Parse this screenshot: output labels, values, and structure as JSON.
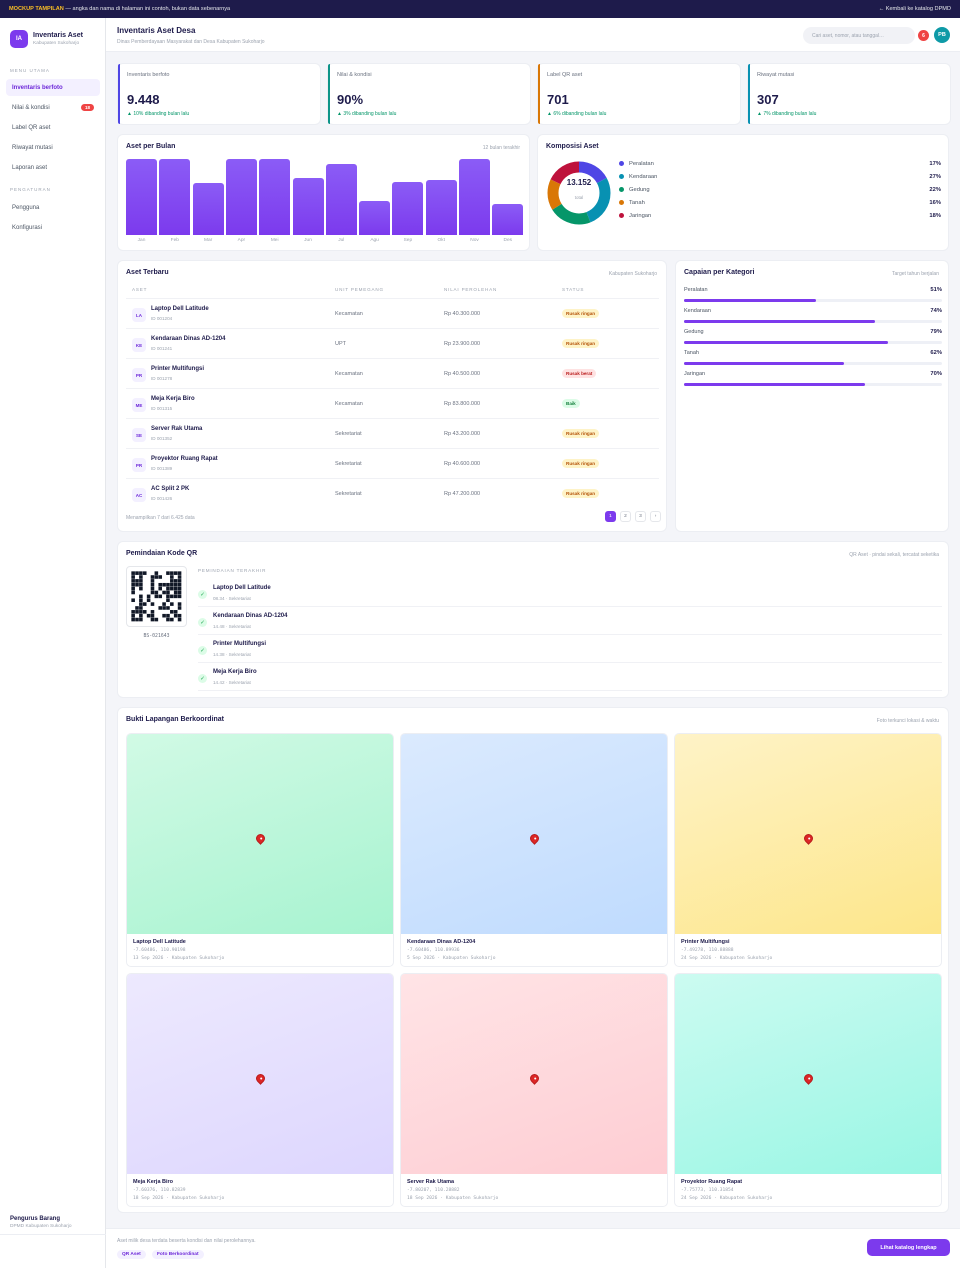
{
  "banner": {
    "tag": "MOCKUP TAMPILAN",
    "text": " — angka dan nama di halaman ini contoh, bukan data sebenarnya",
    "back_link": "← Kembali ke katalog DPMD"
  },
  "brand": {
    "initials": "IA",
    "title": "Inventaris Aset",
    "subtitle": "Kabupaten Sukoharjo"
  },
  "nav": {
    "section_main": "MENU UTAMA",
    "items": [
      {
        "label": "Inventaris berfoto",
        "active": true
      },
      {
        "label": "Nilai & kondisi",
        "badge": "18"
      },
      {
        "label": "Label QR aset"
      },
      {
        "label": "Riwayat mutasi"
      },
      {
        "label": "Laporan aset"
      }
    ],
    "section_settings": "PENGATURAN",
    "settings": [
      {
        "label": "Pengguna"
      },
      {
        "label": "Konfigurasi"
      }
    ]
  },
  "sidebar_footer": {
    "title": "Pengurus Barang",
    "subtitle": "DPMD Kabupaten Sukoharjo"
  },
  "header": {
    "title": "Inventaris Aset Desa",
    "subtitle": "Dinas Pemberdayaan Masyarakat dan Desa Kabupaten Sukoharjo",
    "search_placeholder": "Cari aset, nomor, atau tanggal…",
    "notif_count": "6",
    "avatar": "PB"
  },
  "stats": [
    {
      "label": "Inventaris berfoto",
      "value": "9.448",
      "change": "▲ 10% dibanding bulan lalu",
      "accent": "#4f46e5"
    },
    {
      "label": "Nilai & kondisi",
      "value": "90%",
      "change": "▲ 3% dibanding bulan lalu",
      "accent": "#0d9488"
    },
    {
      "label": "Label QR aset",
      "value": "701",
      "change": "▲ 6% dibanding bulan lalu",
      "accent": "#d97706"
    },
    {
      "label": "Riwayat mutasi",
      "value": "307",
      "change": "▲ 7% dibanding bulan lalu",
      "accent": "#0891b2"
    }
  ],
  "chart_data": [
    {
      "type": "bar",
      "title": "Aset per Bulan",
      "subtitle": "12 bulan terakhir",
      "categories": [
        "Jan",
        "Feb",
        "Mar",
        "Apr",
        "Mei",
        "Jun",
        "Jul",
        "Agu",
        "Sep",
        "Okt",
        "Nov",
        "Des"
      ],
      "values": [
        100,
        100,
        68,
        100,
        100,
        75,
        93,
        45,
        70,
        72,
        100,
        41
      ],
      "ylim": [
        0,
        100
      ],
      "grid": false
    },
    {
      "type": "pie",
      "title": "Komposisi Aset",
      "total": "13.152",
      "total_label": "total",
      "slices": [
        {
          "name": "Peralatan",
          "value": 17,
          "label": "17%",
          "color": "#4f46e5"
        },
        {
          "name": "Kendaraan",
          "value": 27,
          "label": "27%",
          "color": "#0891b2"
        },
        {
          "name": "Gedung",
          "value": 22,
          "label": "22%",
          "color": "#059669"
        },
        {
          "name": "Tanah",
          "value": 16,
          "label": "16%",
          "color": "#d97706"
        },
        {
          "name": "Jaringan",
          "value": 18,
          "label": "18%",
          "color": "#be123c"
        }
      ]
    }
  ],
  "table": {
    "title": "Aset Terbaru",
    "right": "Kabupaten Sukoharjo",
    "headers": [
      "ASET",
      "UNIT PEMEGANG",
      "NILAI PEROLEHAN",
      "STATUS"
    ],
    "rows": [
      {
        "ini": "LA",
        "name": "Laptop Dell Latitude",
        "id": "ID 001204",
        "unit": "Kecamatan",
        "value": "Rp 40.300.000",
        "status": "Rusak ringan",
        "kind": "warn"
      },
      {
        "ini": "KE",
        "name": "Kendaraan Dinas AD-1204",
        "id": "ID 001241",
        "unit": "UPT",
        "value": "Rp 23.900.000",
        "status": "Rusak ringan",
        "kind": "warn"
      },
      {
        "ini": "PR",
        "name": "Printer Multifungsi",
        "id": "ID 001278",
        "unit": "Kecamatan",
        "value": "Rp 40.500.000",
        "status": "Rusak berat",
        "kind": "bad"
      },
      {
        "ini": "ME",
        "name": "Meja Kerja Biro",
        "id": "ID 001315",
        "unit": "Kecamatan",
        "value": "Rp 83.800.000",
        "status": "Baik",
        "kind": "good"
      },
      {
        "ini": "SE",
        "name": "Server Rak Utama",
        "id": "ID 001352",
        "unit": "Sekretariat",
        "value": "Rp 43.200.000",
        "status": "Rusak ringan",
        "kind": "warn"
      },
      {
        "ini": "PR",
        "name": "Proyektor Ruang Rapat",
        "id": "ID 001389",
        "unit": "Sekretariat",
        "value": "Rp 40.600.000",
        "status": "Rusak ringan",
        "kind": "warn"
      },
      {
        "ini": "AC",
        "name": "AC Split 2 PK",
        "id": "ID 001426",
        "unit": "Sekretariat",
        "value": "Rp 47.200.000",
        "status": "Rusak ringan",
        "kind": "warn"
      }
    ],
    "footer": "Menampilkan 7 dari 6.425 data",
    "pages": [
      "1",
      "2",
      "3",
      "›"
    ]
  },
  "progress": {
    "title": "Capaian per Kategori",
    "right": "Target tahun berjalan",
    "items": [
      {
        "label": "Peralatan",
        "pct": 51,
        "text": "51%"
      },
      {
        "label": "Kendaraan",
        "pct": 74,
        "text": "74%"
      },
      {
        "label": "Gedung",
        "pct": 79,
        "text": "79%"
      },
      {
        "label": "Tanah",
        "pct": 62,
        "text": "62%"
      },
      {
        "label": "Jaringan",
        "pct": 70,
        "text": "70%"
      }
    ]
  },
  "qr": {
    "title": "Pemindaian Kode QR",
    "right": "QR Aset · pindai sekali, tercatat seketika",
    "code": "BS-021643",
    "recent_title": "PEMINDAIAN TERAKHIR",
    "scans": [
      {
        "name": "Laptop Dell Latitude",
        "meta": "08.34 · Sekretariat"
      },
      {
        "name": "Kendaraan Dinas AD-1204",
        "meta": "14.48 · Sekretariat"
      },
      {
        "name": "Printer Multifungsi",
        "meta": "14.38 · Sekretariat"
      },
      {
        "name": "Meja Kerja Biro",
        "meta": "14.42 · Sekretariat"
      }
    ]
  },
  "photos": {
    "title": "Bukti Lapangan Berkoordinat",
    "right": "Foto terkunci lokasi & waktu",
    "items": [
      {
        "name": "Laptop Dell Latitude",
        "coord": "-7.60486, 110.90198",
        "date": "13 Sep 2026 · Kabupaten Sukoharjo",
        "c1": "#d1fae5",
        "c2": "#a7f3d0"
      },
      {
        "name": "Kendaraan Dinas AD-1204",
        "coord": "-7.60486, 110.89936",
        "date": "5 Sep 2026 · Kabupaten Sukoharjo",
        "c1": "#dbeafe",
        "c2": "#bfdbfe"
      },
      {
        "name": "Printer Multifungsi",
        "coord": "-7.49278, 110.88888",
        "date": "24 Sep 2026 · Kabupaten Sukoharjo",
        "c1": "#fef3c7",
        "c2": "#fde68a"
      },
      {
        "name": "Meja Kerja Biro",
        "coord": "-7.60376, 110.82839",
        "date": "18 Sep 2026 · Kabupaten Sukoharjo",
        "c1": "#ede9fe",
        "c2": "#ddd6fe"
      },
      {
        "name": "Server Rak Utama",
        "coord": "-7.80207, 110.28882",
        "date": "18 Sep 2026 · Kabupaten Sukoharjo",
        "c1": "#ffe4e6",
        "c2": "#fecdd3"
      },
      {
        "name": "Proyektor Ruang Rapat",
        "coord": "-7.75773, 110.31854",
        "date": "24 Sep 2026 · Kabupaten Sukoharjo",
        "c1": "#ccfbf1",
        "c2": "#99f6e4"
      }
    ]
  },
  "footer": {
    "text": "Aset milik desa terdata beserta kondisi dan nilai perolehannya.",
    "chips": [
      "QR Aset",
      "Foto Berkoordinat"
    ],
    "button": "Lihat katalog lengkap"
  }
}
